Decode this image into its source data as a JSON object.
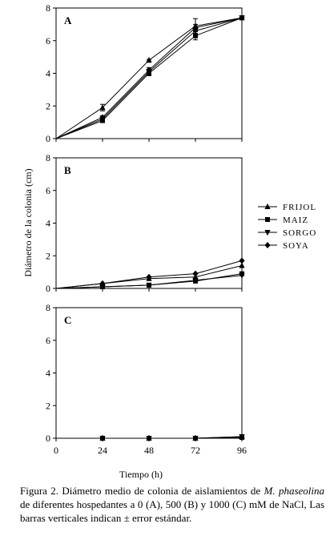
{
  "chart_data": [
    {
      "type": "line",
      "panel_label": "A",
      "x": [
        0,
        24,
        48,
        72,
        96
      ],
      "xticklabels": [
        "",
        "",
        "",
        "",
        ""
      ],
      "ylim": [
        0,
        8
      ],
      "yticks": [
        0,
        2,
        4,
        6,
        8
      ],
      "series": [
        {
          "name": "FRIJOL",
          "marker": "triangle-up",
          "values": [
            0,
            1.9,
            4.8,
            6.9,
            7.4
          ],
          "err": [
            0,
            0.2,
            0.05,
            0.45,
            0.05
          ]
        },
        {
          "name": "MAIZ",
          "marker": "square",
          "values": [
            0,
            1.1,
            4.0,
            6.3,
            7.4
          ],
          "err": [
            0,
            0.1,
            0.15,
            0.25,
            0.05
          ]
        },
        {
          "name": "SORGO",
          "marker": "triangle-down",
          "values": [
            0,
            1.2,
            4.1,
            6.6,
            7.4
          ],
          "err": [
            0,
            0.1,
            0.15,
            0.2,
            0.05
          ]
        },
        {
          "name": "SOYA",
          "marker": "diamond",
          "values": [
            0,
            1.3,
            4.2,
            6.8,
            7.4
          ],
          "err": [
            0,
            0.1,
            0.15,
            0.2,
            0.05
          ]
        }
      ]
    },
    {
      "type": "line",
      "panel_label": "B",
      "x": [
        0,
        24,
        48,
        72,
        96
      ],
      "xticklabels": [
        "",
        "",
        "",
        "",
        ""
      ],
      "ylim": [
        0,
        8
      ],
      "yticks": [
        0,
        2,
        4,
        6,
        8
      ],
      "series": [
        {
          "name": "FRIJOL",
          "marker": "triangle-up",
          "values": [
            0,
            0.3,
            0.6,
            0.7,
            1.4
          ],
          "err": [
            0,
            0,
            0,
            0,
            0
          ]
        },
        {
          "name": "MAIZ",
          "marker": "square",
          "values": [
            0,
            0.1,
            0.2,
            0.45,
            0.9
          ],
          "err": [
            0,
            0,
            0,
            0,
            0
          ]
        },
        {
          "name": "SORGO",
          "marker": "triangle-down",
          "values": [
            0,
            0.1,
            0.2,
            0.5,
            0.8
          ],
          "err": [
            0,
            0,
            0,
            0,
            0
          ]
        },
        {
          "name": "SOYA",
          "marker": "diamond",
          "values": [
            0,
            0.3,
            0.7,
            0.9,
            1.7
          ],
          "err": [
            0,
            0,
            0,
            0,
            0
          ]
        }
      ]
    },
    {
      "type": "line",
      "panel_label": "C",
      "x": [
        0,
        24,
        48,
        72,
        96
      ],
      "xticklabels": [
        "0",
        "24",
        "48",
        "72",
        "96"
      ],
      "ylim": [
        0,
        8
      ],
      "yticks": [
        0,
        2,
        4,
        6,
        8
      ],
      "series": [
        {
          "name": "FRIJOL",
          "marker": "triangle-up",
          "values": [
            0,
            0,
            0,
            0,
            0.1
          ],
          "err": [
            0,
            0,
            0,
            0,
            0
          ]
        },
        {
          "name": "MAIZ",
          "marker": "square",
          "values": [
            0,
            0,
            0,
            0,
            0.05
          ],
          "err": [
            0,
            0,
            0,
            0,
            0
          ]
        },
        {
          "name": "SORGO",
          "marker": "triangle-down",
          "values": [
            0,
            0,
            0,
            0,
            0.1
          ],
          "err": [
            0,
            0,
            0,
            0,
            0
          ]
        },
        {
          "name": "SOYA",
          "marker": "diamond",
          "values": [
            0,
            0,
            0,
            0,
            0.05
          ],
          "err": [
            0,
            0,
            0,
            0,
            0
          ]
        }
      ]
    }
  ],
  "ylabel": "Diámetro de la colonia (cm)",
  "xlabel": "Tiempo (h)",
  "legend": [
    {
      "name": "FRIJOL",
      "marker": "triangle-up"
    },
    {
      "name": "MAIZ",
      "marker": "square"
    },
    {
      "name": "SORGO",
      "marker": "triangle-down"
    },
    {
      "name": "SOYA",
      "marker": "diamond"
    }
  ],
  "legend_position": "right",
  "caption": {
    "prefix": "Figura 2. Diámetro medio de colonia de aislamientos de",
    "species": "M. phaseolina",
    "suffix": "de diferentes hospedantes a 0 (A), 500 (B) y 1000 (C) mM de NaCl, Las barras verticales indican ± error estándar."
  }
}
